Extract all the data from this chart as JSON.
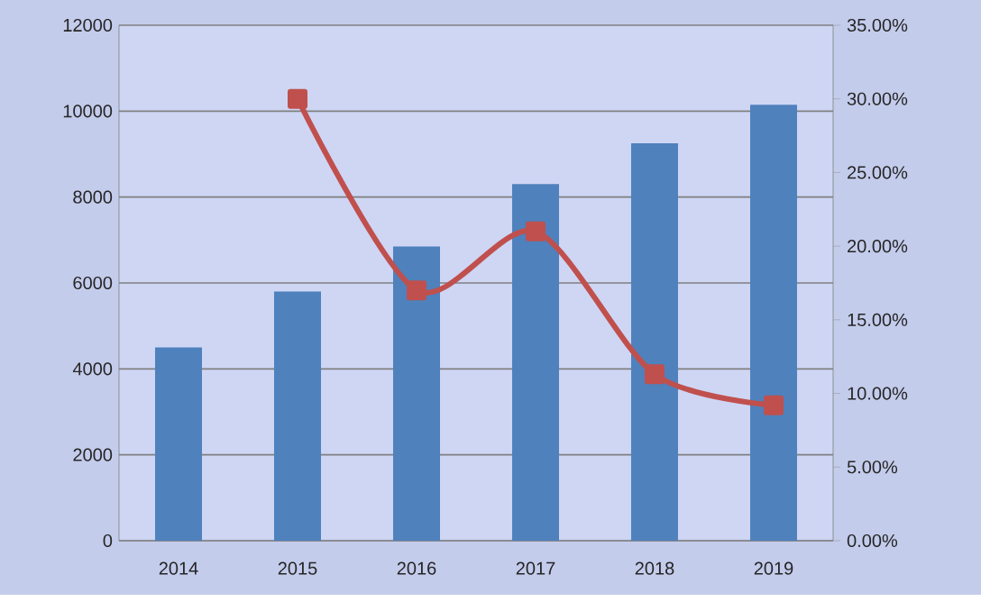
{
  "chart_data": {
    "type": "bar",
    "categories": [
      "2014",
      "2015",
      "2016",
      "2017",
      "2018",
      "2019"
    ],
    "series": [
      {
        "color": "#4f81bd",
        "values": [
          4500,
          5800,
          6850,
          8300,
          9250,
          10150
        ]
      },
      {
        "type": "line",
        "axis": "y2",
        "color": "#c0504d",
        "marker": "square",
        "values": [
          null,
          30,
          17,
          21,
          11.3,
          9.2
        ]
      }
    ],
    "ylim": [
      0,
      12000
    ],
    "yticks": [
      0,
      2000,
      4000,
      6000,
      8000,
      10000,
      12000
    ],
    "y2lim": [
      0,
      35
    ],
    "y2ticks": [
      {
        "value": 0,
        "label": "0.00%"
      },
      {
        "value": 5,
        "label": "5.00%"
      },
      {
        "value": 10,
        "label": "10.00%"
      },
      {
        "value": 15,
        "label": "15.00%"
      },
      {
        "value": 20,
        "label": "20.00%"
      },
      {
        "value": 25,
        "label": "25.00%"
      },
      {
        "value": 30,
        "label": "30.00%"
      },
      {
        "value": 35,
        "label": "35.00%"
      }
    ],
    "grid": "y",
    "legend": false
  }
}
